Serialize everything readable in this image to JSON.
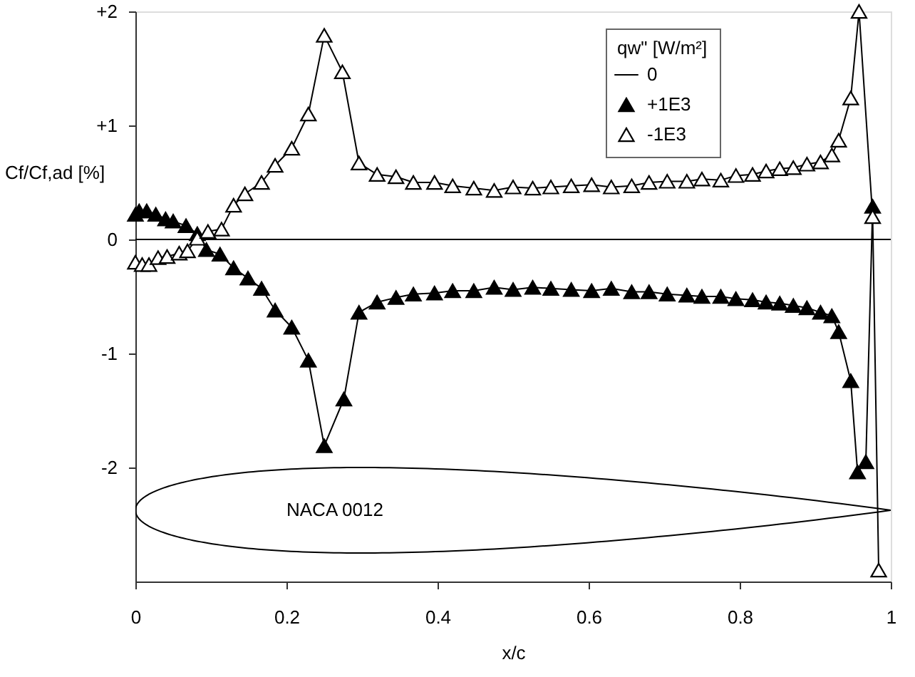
{
  "chart_data": {
    "type": "line",
    "xlabel": "x/c",
    "ylabel": "Cf/Cf,ad [%]",
    "legend_title": "qw\" [W/m²]",
    "legend": "top right",
    "grid": false,
    "xlim": [
      0,
      1
    ],
    "xticks": [
      0,
      0.2,
      0.4,
      0.6,
      0.8,
      1
    ],
    "ylim": [
      -3,
      2
    ],
    "yticks": [
      {
        "value": 2,
        "label": "+2"
      },
      {
        "value": 1,
        "label": "+1"
      },
      0,
      -1,
      -2
    ],
    "annotations": [
      "NACA 0012"
    ],
    "series": [
      {
        "name": "0",
        "color": "#000000",
        "marker": "none",
        "x": [
          0,
          1
        ],
        "values": [
          0,
          0
        ]
      },
      {
        "name": "+1E3",
        "color": "#000000",
        "marker": "triangle",
        "x": [
          0,
          0.005,
          0.015,
          0.027,
          0.04,
          0.05,
          0.067,
          0.082,
          0.094,
          0.112,
          0.13,
          0.149,
          0.167,
          0.185,
          0.207,
          0.229,
          0.25,
          0.276,
          0.296,
          0.32,
          0.345,
          0.368,
          0.396,
          0.42,
          0.448,
          0.475,
          0.5,
          0.526,
          0.55,
          0.577,
          0.604,
          0.63,
          0.657,
          0.68,
          0.704,
          0.73,
          0.75,
          0.775,
          0.795,
          0.817,
          0.835,
          0.853,
          0.871,
          0.889,
          0.907,
          0.922,
          0.931,
          0.947,
          0.956,
          0.967,
          0.976
        ],
        "values": [
          0.22,
          0.25,
          0.25,
          0.22,
          0.18,
          0.16,
          0.12,
          0.05,
          -0.09,
          -0.13,
          -0.25,
          -0.34,
          -0.43,
          -0.62,
          -0.77,
          -1.06,
          -1.81,
          -1.4,
          -0.64,
          -0.55,
          -0.51,
          -0.48,
          -0.47,
          -0.45,
          -0.45,
          -0.42,
          -0.44,
          -0.42,
          -0.43,
          -0.44,
          -0.45,
          -0.43,
          -0.46,
          -0.46,
          -0.48,
          -0.49,
          -0.5,
          -0.5,
          -0.52,
          -0.53,
          -0.55,
          -0.56,
          -0.58,
          -0.6,
          -0.64,
          -0.67,
          -0.81,
          -1.24,
          -2.04,
          -1.95,
          0.29
        ]
      },
      {
        "name": "-1E3",
        "color": "#ffffff",
        "marker": "triangle",
        "x": [
          0,
          0.009,
          0.018,
          0.03,
          0.042,
          0.058,
          0.069,
          0.082,
          0.096,
          0.114,
          0.13,
          0.145,
          0.167,
          0.185,
          0.207,
          0.229,
          0.25,
          0.274,
          0.296,
          0.32,
          0.345,
          0.368,
          0.396,
          0.42,
          0.448,
          0.475,
          0.5,
          0.526,
          0.55,
          0.577,
          0.604,
          0.63,
          0.657,
          0.68,
          0.704,
          0.73,
          0.75,
          0.775,
          0.795,
          0.817,
          0.835,
          0.853,
          0.871,
          0.889,
          0.907,
          0.922,
          0.931,
          0.947,
          0.958,
          0.976,
          0.984
        ],
        "values": [
          -0.2,
          -0.22,
          -0.22,
          -0.16,
          -0.15,
          -0.12,
          -0.1,
          0.01,
          0.07,
          0.09,
          0.3,
          0.4,
          0.5,
          0.65,
          0.8,
          1.1,
          1.79,
          1.47,
          0.67,
          0.57,
          0.55,
          0.5,
          0.5,
          0.47,
          0.45,
          0.43,
          0.46,
          0.45,
          0.46,
          0.47,
          0.48,
          0.46,
          0.47,
          0.5,
          0.51,
          0.51,
          0.53,
          0.52,
          0.56,
          0.57,
          0.6,
          0.62,
          0.63,
          0.66,
          0.68,
          0.74,
          0.87,
          1.24,
          2.0,
          0.2,
          -2.9
        ]
      }
    ]
  }
}
